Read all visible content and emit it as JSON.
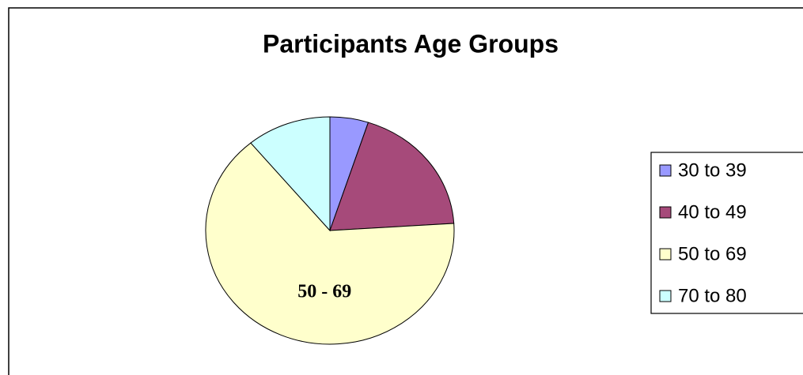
{
  "chart_data": {
    "type": "pie",
    "title": "Participants Age Groups",
    "categories": [
      "30 to 39",
      "40 to 49",
      "50 to 69",
      "70 to 80"
    ],
    "values": [
      5,
      19,
      65,
      11
    ],
    "colors": [
      "#9999ff",
      "#a64a7a",
      "#ffffcc",
      "#ccffff"
    ],
    "annotations": [
      "50 - 69"
    ],
    "legend": "right"
  }
}
